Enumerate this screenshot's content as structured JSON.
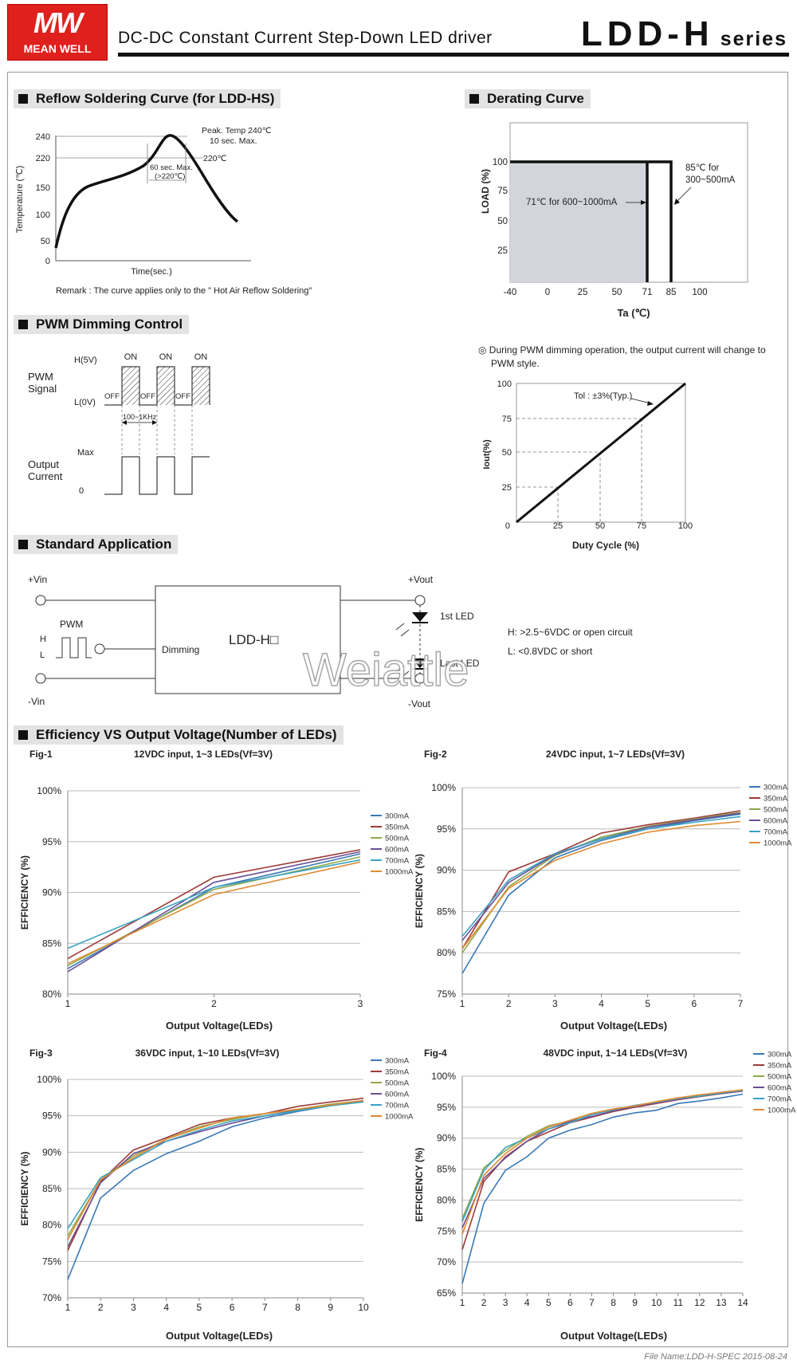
{
  "header": {
    "logo_mark": "MW",
    "logo_name": "MEAN WELL",
    "title": "DC-DC Constant Current Step-Down LED driver",
    "series_code": "LDD-H",
    "series_word": "series"
  },
  "sections": {
    "reflow": "Reflow Soldering Curve (for LDD-HS)",
    "derating": "Derating Curve",
    "pwm": "PWM Dimming Control",
    "app": "Standard Application",
    "eff": "Efficiency VS Output Voltage(Number of LEDs)"
  },
  "reflow": {
    "ylabel": "Temperature (℃)",
    "xlabel": "Time(sec.)",
    "peak_line1": "Peak. Temp 240℃",
    "peak_line2": "10 sec. Max.",
    "t220": "220℃",
    "dur_line1": "60 sec. Max.",
    "dur_line2": "(>220℃)",
    "remark": "Remark : The curve applies only to the \" Hot Air Reflow Soldering\"",
    "yticks": [
      "240",
      "220",
      "150",
      "100",
      "50",
      "0"
    ]
  },
  "derating": {
    "ylabel": "LOAD (%)",
    "xlabel": "Ta (℃)",
    "yticks": [
      "100",
      "75",
      "50",
      "25"
    ],
    "xticks": [
      "-40",
      "0",
      "25",
      "50",
      "71",
      "85",
      "100"
    ],
    "note_low": "71℃ for 600~1000mA",
    "note_high_1": "85℃ for",
    "note_high_2": "300~500mA"
  },
  "pwm": {
    "signal_label_1": "PWM",
    "signal_label_2": "Signal",
    "h_level": "H(5V)",
    "l_level": "L(0V)",
    "on": "ON",
    "off": "OFF",
    "freq": "100~1KHz",
    "out_label_1": "Output",
    "out_label_2": "Current",
    "max": "Max",
    "zero": "0",
    "note_1": "◎ During PWM dimming operation, the output current will change to",
    "note_2": "PWM style.",
    "duty_ylabel": "Iout(%)",
    "duty_xlabel": "Duty Cycle (%)",
    "tol": "Tol : ±3%(Typ.)",
    "duty_yticks": [
      "100",
      "75",
      "50",
      "25",
      "0"
    ],
    "duty_xticks": [
      "25",
      "50",
      "75",
      "100"
    ]
  },
  "app": {
    "vin_pos": "+Vin",
    "vin_neg": "-Vin",
    "vout_pos": "+Vout",
    "vout_neg": "-Vout",
    "pwm": "PWM",
    "h": "H",
    "l": "L",
    "dimming": "Dimming",
    "module": "LDD-H□",
    "led_first": "1st LED",
    "led_last": "Last LED",
    "note_h": "H: >2.5~6VDC or open circuit",
    "note_l": "L: <0.8VDC or short",
    "watermark": "Weiattle"
  },
  "eff_common": {
    "ylabel": "EFFICIENCY (%)",
    "xlabel": "Output Voltage(LEDs)",
    "colors": [
      "#3a78b5",
      "#9e3b3a",
      "#8ea84a",
      "#6b4f96",
      "#3aa3c2",
      "#e08b32"
    ]
  },
  "chart_data": [
    {
      "type": "line",
      "fig": "Fig-1",
      "title": "12VDC input, 1~3 LEDs(Vf=3V)",
      "x": [
        1,
        2,
        3
      ],
      "ylim": [
        80,
        100
      ],
      "yticks": [
        "80%",
        "85%",
        "90%",
        "95%",
        "100%"
      ],
      "series": [
        {
          "name": "300mA",
          "values": [
            82.5,
            90.5,
            93.8
          ]
        },
        {
          "name": "350mA",
          "values": [
            83.5,
            91.5,
            94.2
          ]
        },
        {
          "name": "500mA",
          "values": [
            82.8,
            90.3,
            93.5
          ]
        },
        {
          "name": "600mA",
          "values": [
            82.2,
            91.0,
            94.0
          ]
        },
        {
          "name": "700mA",
          "values": [
            84.5,
            90.5,
            93.2
          ]
        },
        {
          "name": "1000mA",
          "values": [
            83.0,
            89.8,
            93.0
          ]
        }
      ]
    },
    {
      "type": "line",
      "fig": "Fig-2",
      "title": "24VDC input, 1~7 LEDs(Vf=3V)",
      "x": [
        1,
        2,
        3,
        4,
        5,
        6,
        7
      ],
      "ylim": [
        75,
        100
      ],
      "yticks": [
        "75%",
        "80%",
        "85%",
        "90%",
        "95%",
        "100%"
      ],
      "series": [
        {
          "name": "300mA",
          "values": [
            77.5,
            87.0,
            91.5,
            93.6,
            95.0,
            96.0,
            96.8
          ]
        },
        {
          "name": "350mA",
          "values": [
            80.5,
            89.8,
            92.0,
            94.5,
            95.5,
            96.3,
            97.2
          ]
        },
        {
          "name": "500mA",
          "values": [
            80.0,
            88.0,
            91.8,
            94.0,
            95.3,
            96.2,
            97.0
          ]
        },
        {
          "name": "600mA",
          "values": [
            81.5,
            88.5,
            91.9,
            93.8,
            95.2,
            96.1,
            96.9
          ]
        },
        {
          "name": "700mA",
          "values": [
            82.0,
            88.8,
            92.0,
            93.8,
            95.0,
            95.8,
            96.5
          ]
        },
        {
          "name": "1000mA",
          "values": [
            80.5,
            87.8,
            91.2,
            93.2,
            94.6,
            95.4,
            95.9
          ]
        }
      ]
    },
    {
      "type": "line",
      "fig": "Fig-3",
      "title": "36VDC input, 1~10 LEDs(Vf=3V)",
      "x": [
        1,
        2,
        3,
        4,
        5,
        6,
        7,
        8,
        9,
        10
      ],
      "ylim": [
        70,
        100
      ],
      "yticks": [
        "70%",
        "75%",
        "80%",
        "85%",
        "90%",
        "95%",
        "100%"
      ],
      "series": [
        {
          "name": "300mA",
          "values": [
            72.5,
            83.7,
            87.5,
            89.8,
            91.5,
            93.5,
            94.7,
            95.6,
            96.4,
            97.0
          ]
        },
        {
          "name": "350mA",
          "values": [
            76.5,
            86.0,
            90.3,
            92.0,
            93.8,
            94.7,
            95.3,
            96.3,
            96.9,
            97.4
          ]
        },
        {
          "name": "500mA",
          "values": [
            78.5,
            86.2,
            89.5,
            91.8,
            93.5,
            94.5,
            95.3,
            95.9,
            96.6,
            97.1
          ]
        },
        {
          "name": "600mA",
          "values": [
            77.0,
            85.8,
            89.8,
            91.5,
            92.8,
            94.0,
            95.0,
            95.8,
            96.5,
            97.0
          ]
        },
        {
          "name": "700mA",
          "values": [
            79.5,
            86.5,
            89.0,
            91.5,
            93.0,
            94.3,
            95.0,
            95.7,
            96.4,
            96.9
          ]
        },
        {
          "name": "1000mA",
          "values": [
            78.0,
            86.2,
            89.2,
            91.8,
            93.3,
            94.7,
            95.3,
            95.9,
            96.5,
            97.1
          ]
        }
      ]
    },
    {
      "type": "line",
      "fig": "Fig-4",
      "title": "48VDC input, 1~14 LEDs(Vf=3V)",
      "x": [
        1,
        2,
        3,
        4,
        5,
        6,
        7,
        8,
        9,
        10,
        11,
        12,
        13,
        14
      ],
      "ylim": [
        65,
        100
      ],
      "yticks": [
        "65%",
        "70%",
        "75%",
        "80%",
        "85%",
        "90%",
        "95%",
        "100%"
      ],
      "series": [
        {
          "name": "300mA",
          "values": [
            66.5,
            79.5,
            84.8,
            87.0,
            90.0,
            91.3,
            92.2,
            93.4,
            94.1,
            94.5,
            95.6,
            96.0,
            96.5,
            97.1
          ]
        },
        {
          "name": "350mA",
          "values": [
            72.0,
            83.0,
            87.0,
            89.5,
            91.0,
            92.5,
            93.4,
            94.3,
            95.0,
            95.6,
            96.2,
            96.7,
            97.2,
            97.6
          ]
        },
        {
          "name": "500mA",
          "values": [
            77.0,
            85.2,
            88.0,
            90.3,
            92.0,
            92.8,
            94.0,
            94.5,
            95.2,
            95.9,
            96.5,
            96.9,
            97.4,
            97.8
          ]
        },
        {
          "name": "600mA",
          "values": [
            75.5,
            83.5,
            86.8,
            89.5,
            91.5,
            92.7,
            93.5,
            94.4,
            95.1,
            95.7,
            96.3,
            96.8,
            97.2,
            97.6
          ]
        },
        {
          "name": "700mA",
          "values": [
            76.5,
            84.8,
            88.5,
            90.0,
            91.5,
            92.5,
            93.8,
            94.6,
            95.3,
            95.8,
            96.4,
            96.8,
            97.3,
            97.7
          ]
        },
        {
          "name": "1000mA",
          "values": [
            74.5,
            84.0,
            87.5,
            90.0,
            91.8,
            92.9,
            94.0,
            94.7,
            95.2,
            95.9,
            96.5,
            97.0,
            97.4,
            97.8
          ]
        }
      ]
    }
  ],
  "footer": "File Name:LDD-H-SPEC   2015-08-24"
}
